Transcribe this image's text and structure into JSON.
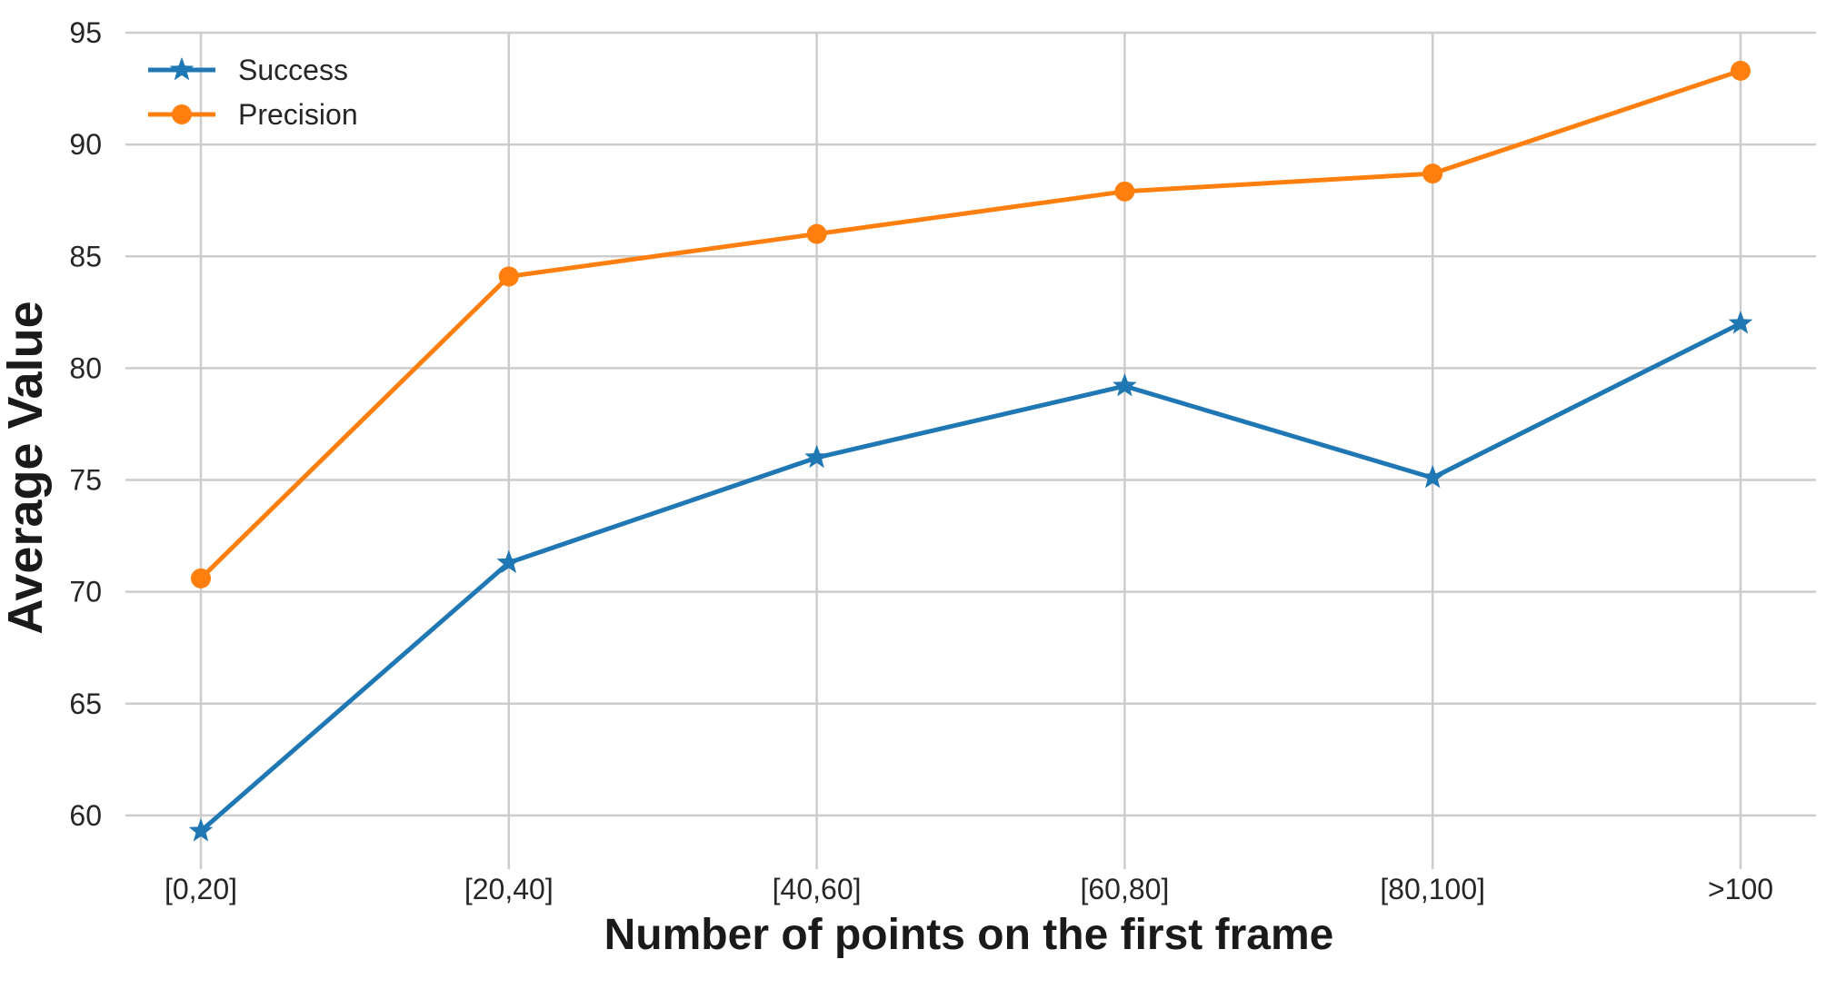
{
  "chart_data": {
    "type": "line",
    "categories": [
      "[0,20]",
      "[20,40]",
      "[40,60]",
      "[60,80]",
      "[80,100]",
      ">100"
    ],
    "series": [
      {
        "name": "Success",
        "color": "#1f77b4",
        "marker": "star",
        "values": [
          59.3,
          71.3,
          76.0,
          79.2,
          75.1,
          82.0
        ]
      },
      {
        "name": "Precision",
        "color": "#ff7f0e",
        "marker": "circle",
        "values": [
          70.6,
          84.1,
          86.0,
          87.9,
          88.7,
          93.3
        ]
      }
    ],
    "title": "",
    "xlabel": "Number of points on the first frame",
    "ylabel": "Average Value",
    "yticks": [
      60,
      65,
      70,
      75,
      80,
      85,
      90,
      95
    ],
    "ylim": [
      57.6,
      95
    ],
    "grid": true,
    "legend_position": "upper left"
  },
  "style": {
    "background": "#ffffff",
    "grid_color": "#cccccc",
    "tick_color": "#262626",
    "label_color": "#1a1a1a"
  }
}
